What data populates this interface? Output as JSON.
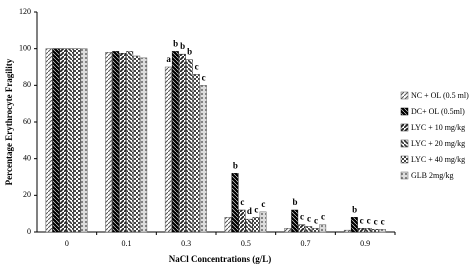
{
  "chart_data": {
    "type": "bar",
    "y_label": "Percentage Erythrocyte Fragility",
    "x_label": "NaCl Concentrations (g/L)",
    "categories": [
      "0",
      "0.1",
      "0.3",
      "0.5",
      "0.7",
      "0.9"
    ],
    "ylim": [
      0,
      120
    ],
    "yticks": [
      0,
      20,
      40,
      60,
      80,
      100,
      120
    ],
    "legend": "right",
    "series": [
      {
        "name": "NC + OL (0.5 ml)",
        "color": "#555555",
        "values": [
          100,
          98,
          90,
          8,
          2,
          1
        ],
        "letters": [
          null,
          null,
          "a",
          null,
          null,
          null
        ]
      },
      {
        "name": "DC+ OL (0.5ml)",
        "color": "#000000",
        "values": [
          100,
          98.5,
          98.5,
          32,
          12,
          8
        ],
        "letters": [
          null,
          null,
          "b",
          "b",
          "b",
          "b"
        ]
      },
      {
        "name": "LYC + 10 mg/kg",
        "color": "#222222",
        "values": [
          100,
          97.5,
          97,
          12,
          4,
          2
        ],
        "letters": [
          null,
          null,
          "b",
          "c",
          "c",
          "c"
        ]
      },
      {
        "name": "LYC + 20 mg/kg",
        "color": "#333333",
        "values": [
          100,
          98.5,
          94,
          7,
          3,
          2
        ],
        "letters": [
          null,
          null,
          "b",
          "d",
          "c",
          "c"
        ]
      },
      {
        "name": "LYC + 40 mg/kg",
        "color": "#444444",
        "values": [
          100,
          96,
          86,
          8,
          2,
          1.5
        ],
        "letters": [
          null,
          null,
          "c",
          "c",
          "c",
          "c"
        ]
      },
      {
        "name": "GLB 2mg/kg",
        "color": "#666666",
        "values": [
          100,
          95,
          80,
          11,
          4,
          1.5
        ],
        "letters": [
          null,
          null,
          "c",
          "c",
          "c",
          "c"
        ]
      }
    ]
  }
}
